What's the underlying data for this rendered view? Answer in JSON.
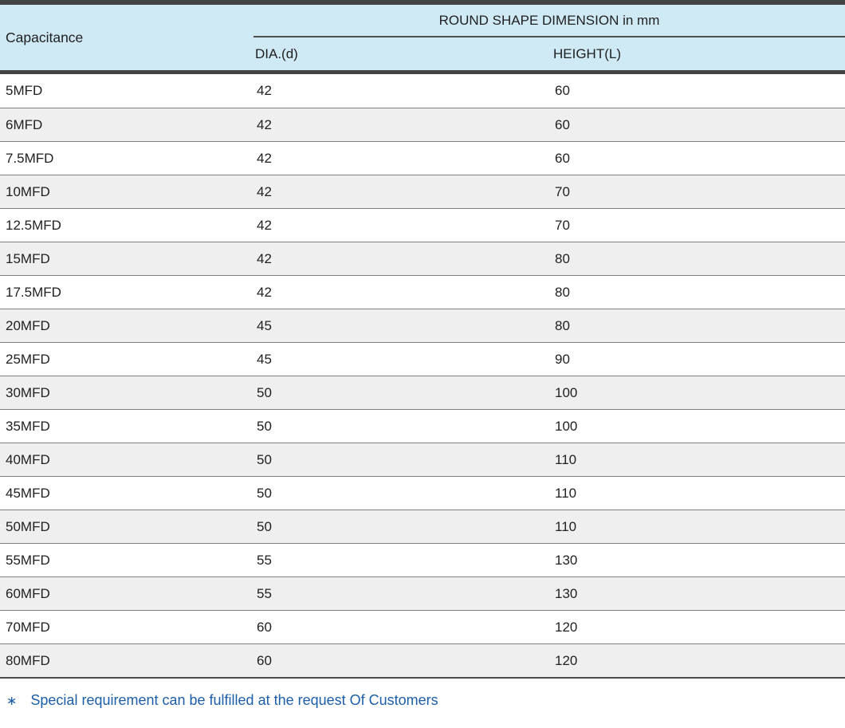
{
  "table": {
    "header": {
      "capacitance": "Capacitance",
      "group": "ROUND SHAPE DIMENSION in mm",
      "dia": "DIA.(d)",
      "height": "HEIGHT(L)"
    },
    "rows": [
      {
        "capacitance": "5MFD",
        "dia": "42",
        "height": "60"
      },
      {
        "capacitance": "6MFD",
        "dia": "42",
        "height": "60"
      },
      {
        "capacitance": "7.5MFD",
        "dia": "42",
        "height": "60"
      },
      {
        "capacitance": "10MFD",
        "dia": "42",
        "height": "70"
      },
      {
        "capacitance": "12.5MFD",
        "dia": "42",
        "height": "70"
      },
      {
        "capacitance": "15MFD",
        "dia": "42",
        "height": "80"
      },
      {
        "capacitance": "17.5MFD",
        "dia": "42",
        "height": "80"
      },
      {
        "capacitance": "20MFD",
        "dia": "45",
        "height": "80"
      },
      {
        "capacitance": "25MFD",
        "dia": "45",
        "height": "90"
      },
      {
        "capacitance": "30MFD",
        "dia": "50",
        "height": "100"
      },
      {
        "capacitance": "35MFD",
        "dia": "50",
        "height": "100"
      },
      {
        "capacitance": "40MFD",
        "dia": "50",
        "height": "110"
      },
      {
        "capacitance": "45MFD",
        "dia": "50",
        "height": "110"
      },
      {
        "capacitance": "50MFD",
        "dia": "50",
        "height": "110"
      },
      {
        "capacitance": "55MFD",
        "dia": "55",
        "height": "130"
      },
      {
        "capacitance": "60MFD",
        "dia": "55",
        "height": "130"
      },
      {
        "capacitance": "70MFD",
        "dia": "60",
        "height": "120"
      },
      {
        "capacitance": "80MFD",
        "dia": "60",
        "height": "120"
      }
    ]
  },
  "footnote": {
    "symbol": "∗",
    "text": "Special requirement can be fulfilled at the request Of Customers"
  },
  "colors": {
    "header_bg": "#cfe9f5",
    "alt_row_bg": "#f0efef",
    "border_dark": "#434343",
    "row_divider": "#808080",
    "footnote_blue": "#1c5ea9",
    "text": "#212121"
  },
  "chart_data": {
    "type": "table",
    "title": "ROUND SHAPE DIMENSION in mm",
    "columns": [
      "Capacitance",
      "DIA.(d)",
      "HEIGHT(L)"
    ],
    "rows": [
      [
        "5MFD",
        42,
        60
      ],
      [
        "6MFD",
        42,
        60
      ],
      [
        "7.5MFD",
        42,
        60
      ],
      [
        "10MFD",
        42,
        70
      ],
      [
        "12.5MFD",
        42,
        70
      ],
      [
        "15MFD",
        42,
        80
      ],
      [
        "17.5MFD",
        42,
        80
      ],
      [
        "20MFD",
        45,
        80
      ],
      [
        "25MFD",
        45,
        90
      ],
      [
        "30MFD",
        50,
        100
      ],
      [
        "35MFD",
        50,
        100
      ],
      [
        "40MFD",
        50,
        110
      ],
      [
        "45MFD",
        50,
        110
      ],
      [
        "50MFD",
        50,
        110
      ],
      [
        "55MFD",
        55,
        130
      ],
      [
        "60MFD",
        55,
        130
      ],
      [
        "70MFD",
        60,
        120
      ],
      [
        "80MFD",
        60,
        120
      ]
    ]
  }
}
